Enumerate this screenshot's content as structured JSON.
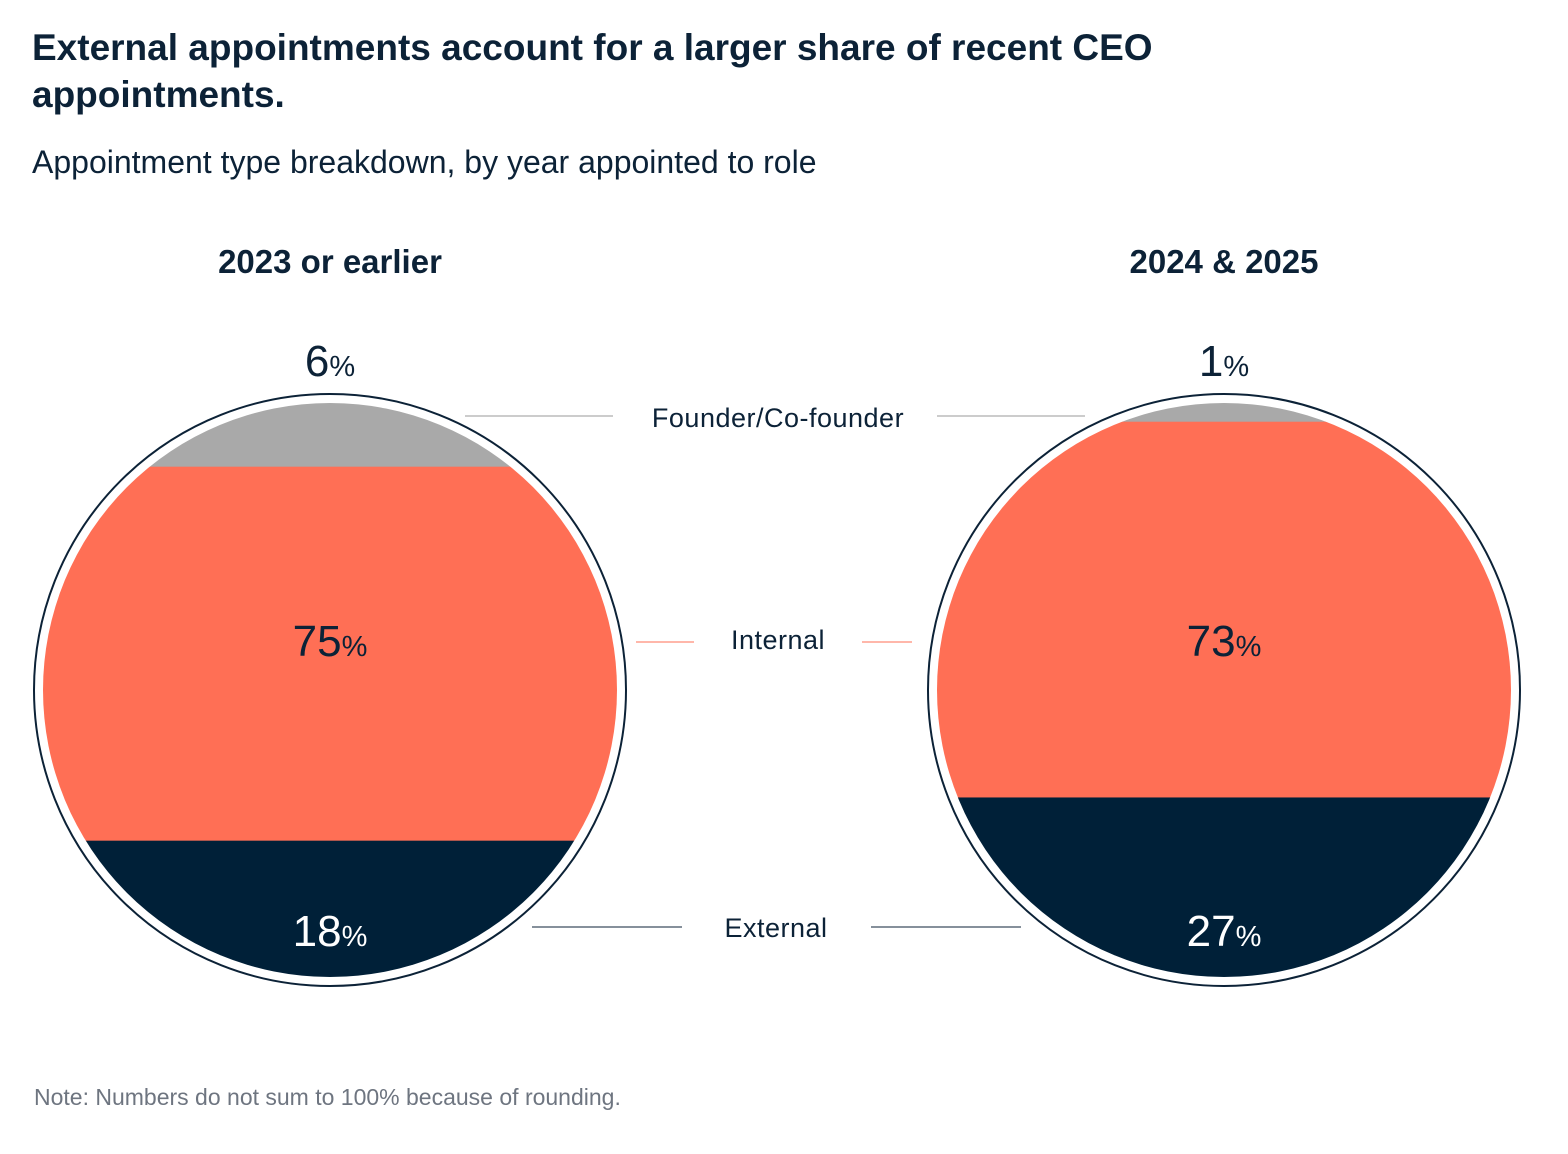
{
  "title": "External appointments account for a larger share of recent CEO appointments.",
  "subtitle": "Appointment type breakdown, by year appointed to role",
  "note": "Note: Numbers do not sum to 100% because of rounding.",
  "chart_data": {
    "type": "pie",
    "style": "horizontal-segment circle",
    "categories": [
      "Founder/Co-founder",
      "Internal",
      "External"
    ],
    "colors": {
      "Founder/Co-founder": "#a9a9a9",
      "Internal": "#ff6f55",
      "External": "#002038"
    },
    "percent_sign": "%",
    "series": [
      {
        "name": "2023 or earlier",
        "values": [
          6,
          75,
          18
        ],
        "labels": {
          "founder": "6",
          "internal": "75",
          "external": "18"
        }
      },
      {
        "name": "2024 & 2025",
        "values": [
          1,
          73,
          27
        ],
        "labels": {
          "founder": "1",
          "internal": "73",
          "external": "27"
        }
      }
    ]
  }
}
